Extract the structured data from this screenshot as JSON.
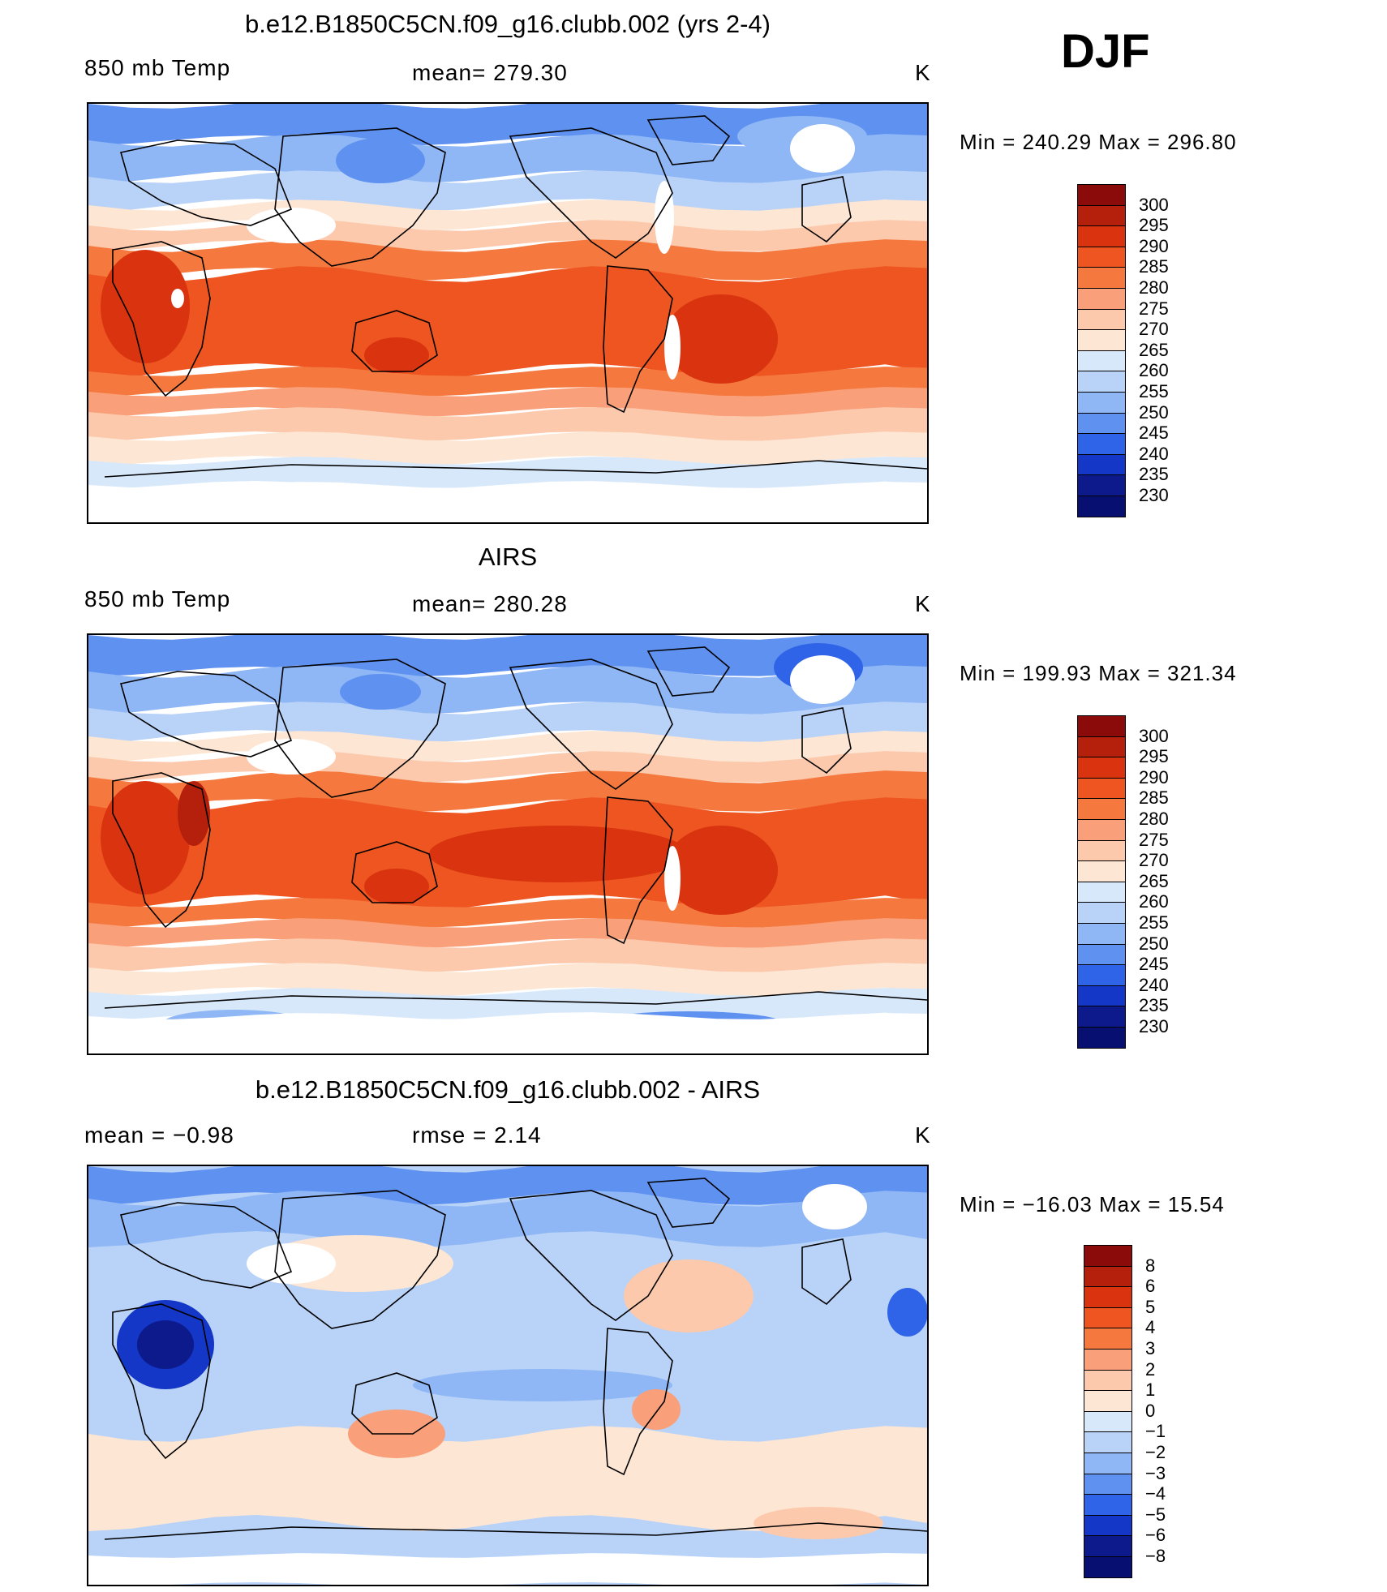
{
  "season": "DJF",
  "panels": [
    {
      "title": "b.e12.B1850C5CN.f09_g16.clubb.002 (yrs 2-4)",
      "left_label": "850 mb Temp",
      "center_label": "mean=  279.30",
      "units": "K",
      "minmax": "Min  =  240.29  Max  =  296.80",
      "map_variant": "model"
    },
    {
      "title": "AIRS",
      "left_label": "850 mb Temp",
      "center_label": "mean=  280.28",
      "units": "K",
      "minmax": "Min  =  199.93  Max  =  321.34",
      "map_variant": "obs"
    },
    {
      "title": "b.e12.B1850C5CN.f09_g16.clubb.002 - AIRS",
      "left_label": "mean  =    −0.98",
      "center_label": "rmse  =     2.14",
      "units": "K",
      "minmax": "Min  =  −16.03  Max  =    15.54",
      "map_variant": "diff"
    }
  ],
  "colorbar_abs": {
    "labels": [
      "300",
      "295",
      "290",
      "285",
      "280",
      "275",
      "270",
      "265",
      "260",
      "255",
      "250",
      "245",
      "240",
      "235",
      "230"
    ],
    "colors": [
      "#8b0a0a",
      "#b5200c",
      "#d9330f",
      "#ee5520",
      "#f5793e",
      "#f9a07a",
      "#fcc9ad",
      "#fde6d3",
      "#d8e8fb",
      "#b8d2f8",
      "#8fb7f5",
      "#5f91f0",
      "#3064e8",
      "#1437c8",
      "#0d1a8c",
      "#071070"
    ]
  },
  "colorbar_diff": {
    "labels": [
      "8",
      "6",
      "5",
      "4",
      "3",
      "2",
      "1",
      "0",
      "−1",
      "−2",
      "−3",
      "−4",
      "−5",
      "−6",
      "−8"
    ],
    "colors": [
      "#8b0a0a",
      "#b5200c",
      "#d9330f",
      "#ee5520",
      "#f5793e",
      "#f9a07a",
      "#fcc9ad",
      "#fde6d3",
      "#d8e8fb",
      "#b8d2f8",
      "#8fb7f5",
      "#5f91f0",
      "#3064e8",
      "#1437c8",
      "#0d1a8c",
      "#071070"
    ]
  }
}
